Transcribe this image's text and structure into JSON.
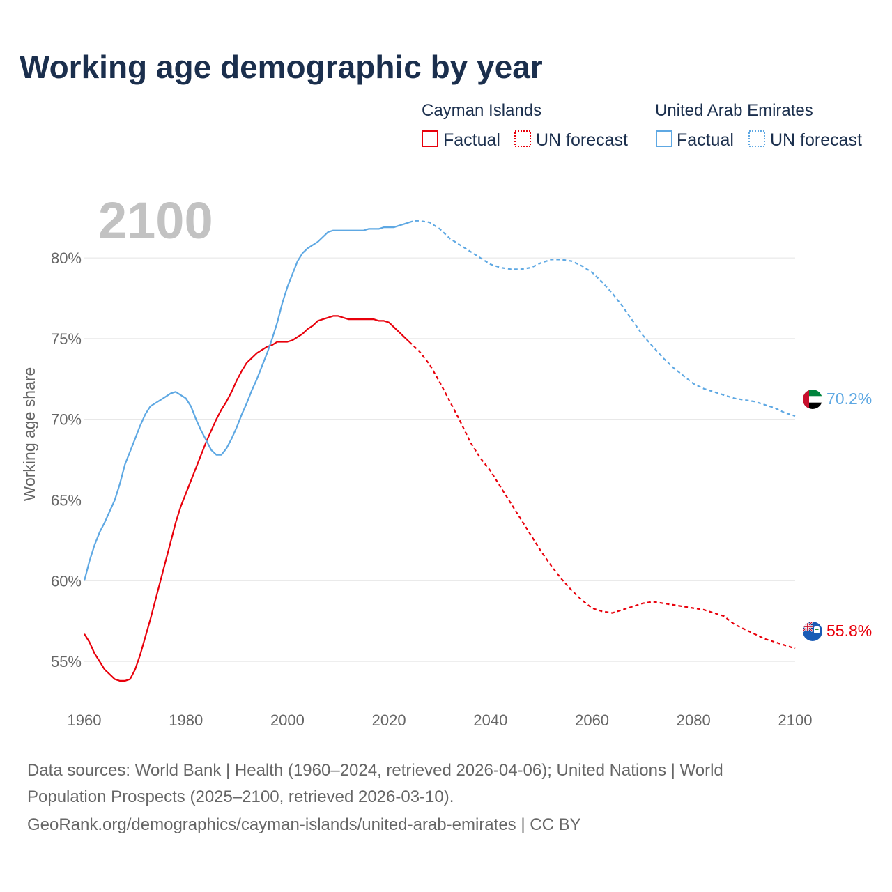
{
  "title": "Working age demographic by year",
  "year_display": "2100",
  "legend": {
    "series": [
      {
        "name": "Cayman Islands",
        "color": "#e8000b",
        "factual_label": "Factual",
        "forecast_label": "UN forecast"
      },
      {
        "name": "United Arab Emirates",
        "color": "#5ea8e3",
        "factual_label": "Factual",
        "forecast_label": "UN forecast"
      }
    ]
  },
  "sources": {
    "line1": "Data sources: World Bank | Health (1960–2024, retrieved 2026-04-06); United Nations | World",
    "line2": "Population Prospects (2025–2100, retrieved 2026-03-10).",
    "line3": "GeoRank.org/demographics/cayman-islands/united-arab-emirates | CC BY"
  },
  "chart_data": {
    "type": "line",
    "title": "Working age demographic by year",
    "xlabel": "",
    "ylabel": "Working age share",
    "xlim": [
      1960,
      2100
    ],
    "ylim": [
      52.5,
      83.5
    ],
    "x_ticks": [
      1960,
      1980,
      2000,
      2020,
      2040,
      2060,
      2080,
      2100
    ],
    "y_ticks": [
      55,
      60,
      65,
      70,
      75,
      80
    ],
    "y_tick_labels": [
      "55%",
      "60%",
      "65%",
      "70%",
      "75%",
      "80%"
    ],
    "forecast_start": 2024,
    "series": [
      {
        "name": "Cayman Islands",
        "color": "#e8000b",
        "end_label": "55.8%",
        "points": [
          [
            1960,
            56.7
          ],
          [
            1961,
            56.2
          ],
          [
            1962,
            55.5
          ],
          [
            1963,
            55.0
          ],
          [
            1964,
            54.5
          ],
          [
            1965,
            54.2
          ],
          [
            1966,
            53.9
          ],
          [
            1967,
            53.8
          ],
          [
            1968,
            53.8
          ],
          [
            1969,
            53.9
          ],
          [
            1970,
            54.5
          ],
          [
            1971,
            55.4
          ],
          [
            1972,
            56.5
          ],
          [
            1973,
            57.6
          ],
          [
            1974,
            58.8
          ],
          [
            1975,
            60.0
          ],
          [
            1976,
            61.2
          ],
          [
            1977,
            62.4
          ],
          [
            1978,
            63.6
          ],
          [
            1979,
            64.6
          ],
          [
            1980,
            65.4
          ],
          [
            1981,
            66.2
          ],
          [
            1982,
            67.0
          ],
          [
            1983,
            67.8
          ],
          [
            1984,
            68.6
          ],
          [
            1985,
            69.3
          ],
          [
            1986,
            70.0
          ],
          [
            1987,
            70.6
          ],
          [
            1988,
            71.1
          ],
          [
            1989,
            71.7
          ],
          [
            1990,
            72.4
          ],
          [
            1991,
            73.0
          ],
          [
            1992,
            73.5
          ],
          [
            1993,
            73.8
          ],
          [
            1994,
            74.1
          ],
          [
            1995,
            74.3
          ],
          [
            1996,
            74.5
          ],
          [
            1997,
            74.6
          ],
          [
            1998,
            74.8
          ],
          [
            1999,
            74.8
          ],
          [
            2000,
            74.8
          ],
          [
            2001,
            74.9
          ],
          [
            2002,
            75.1
          ],
          [
            2003,
            75.3
          ],
          [
            2004,
            75.6
          ],
          [
            2005,
            75.8
          ],
          [
            2006,
            76.1
          ],
          [
            2007,
            76.2
          ],
          [
            2008,
            76.3
          ],
          [
            2009,
            76.4
          ],
          [
            2010,
            76.4
          ],
          [
            2011,
            76.3
          ],
          [
            2012,
            76.2
          ],
          [
            2013,
            76.2
          ],
          [
            2014,
            76.2
          ],
          [
            2015,
            76.2
          ],
          [
            2016,
            76.2
          ],
          [
            2017,
            76.2
          ],
          [
            2018,
            76.1
          ],
          [
            2019,
            76.1
          ],
          [
            2020,
            76.0
          ],
          [
            2021,
            75.7
          ],
          [
            2022,
            75.4
          ],
          [
            2023,
            75.1
          ],
          [
            2024,
            74.8
          ],
          [
            2025,
            74.5
          ],
          [
            2026,
            74.2
          ],
          [
            2028,
            73.4
          ],
          [
            2030,
            72.3
          ],
          [
            2032,
            71.1
          ],
          [
            2034,
            69.9
          ],
          [
            2036,
            68.6
          ],
          [
            2038,
            67.6
          ],
          [
            2040,
            66.8
          ],
          [
            2042,
            65.8
          ],
          [
            2044,
            64.8
          ],
          [
            2046,
            63.8
          ],
          [
            2048,
            62.8
          ],
          [
            2050,
            61.8
          ],
          [
            2052,
            60.9
          ],
          [
            2054,
            60.1
          ],
          [
            2056,
            59.4
          ],
          [
            2058,
            58.8
          ],
          [
            2060,
            58.3
          ],
          [
            2062,
            58.1
          ],
          [
            2064,
            58.0
          ],
          [
            2066,
            58.2
          ],
          [
            2068,
            58.4
          ],
          [
            2070,
            58.6
          ],
          [
            2072,
            58.7
          ],
          [
            2074,
            58.6
          ],
          [
            2076,
            58.5
          ],
          [
            2078,
            58.4
          ],
          [
            2080,
            58.3
          ],
          [
            2082,
            58.2
          ],
          [
            2084,
            58.0
          ],
          [
            2086,
            57.8
          ],
          [
            2088,
            57.3
          ],
          [
            2090,
            57.0
          ],
          [
            2092,
            56.7
          ],
          [
            2094,
            56.4
          ],
          [
            2096,
            56.2
          ],
          [
            2098,
            56.0
          ],
          [
            2100,
            55.8
          ]
        ]
      },
      {
        "name": "United Arab Emirates",
        "color": "#5ea8e3",
        "end_label": "70.2%",
        "points": [
          [
            1960,
            60.0
          ],
          [
            1961,
            61.2
          ],
          [
            1962,
            62.2
          ],
          [
            1963,
            63.0
          ],
          [
            1964,
            63.6
          ],
          [
            1965,
            64.3
          ],
          [
            1966,
            65.0
          ],
          [
            1967,
            66.0
          ],
          [
            1968,
            67.2
          ],
          [
            1969,
            68.0
          ],
          [
            1970,
            68.8
          ],
          [
            1971,
            69.6
          ],
          [
            1972,
            70.3
          ],
          [
            1973,
            70.8
          ],
          [
            1974,
            71.0
          ],
          [
            1975,
            71.2
          ],
          [
            1976,
            71.4
          ],
          [
            1977,
            71.6
          ],
          [
            1978,
            71.7
          ],
          [
            1979,
            71.5
          ],
          [
            1980,
            71.3
          ],
          [
            1981,
            70.8
          ],
          [
            1982,
            70.0
          ],
          [
            1983,
            69.3
          ],
          [
            1984,
            68.7
          ],
          [
            1985,
            68.1
          ],
          [
            1986,
            67.8
          ],
          [
            1987,
            67.8
          ],
          [
            1988,
            68.2
          ],
          [
            1989,
            68.8
          ],
          [
            1990,
            69.5
          ],
          [
            1991,
            70.3
          ],
          [
            1992,
            71.0
          ],
          [
            1993,
            71.8
          ],
          [
            1994,
            72.5
          ],
          [
            1995,
            73.3
          ],
          [
            1996,
            74.1
          ],
          [
            1997,
            75.0
          ],
          [
            1998,
            76.0
          ],
          [
            1999,
            77.2
          ],
          [
            2000,
            78.2
          ],
          [
            2001,
            79.0
          ],
          [
            2002,
            79.8
          ],
          [
            2003,
            80.3
          ],
          [
            2004,
            80.6
          ],
          [
            2005,
            80.8
          ],
          [
            2006,
            81.0
          ],
          [
            2007,
            81.3
          ],
          [
            2008,
            81.6
          ],
          [
            2009,
            81.7
          ],
          [
            2010,
            81.7
          ],
          [
            2011,
            81.7
          ],
          [
            2012,
            81.7
          ],
          [
            2013,
            81.7
          ],
          [
            2014,
            81.7
          ],
          [
            2015,
            81.7
          ],
          [
            2016,
            81.8
          ],
          [
            2017,
            81.8
          ],
          [
            2018,
            81.8
          ],
          [
            2019,
            81.9
          ],
          [
            2020,
            81.9
          ],
          [
            2021,
            81.9
          ],
          [
            2022,
            82.0
          ],
          [
            2023,
            82.1
          ],
          [
            2024,
            82.2
          ],
          [
            2025,
            82.3
          ],
          [
            2026,
            82.3
          ],
          [
            2028,
            82.2
          ],
          [
            2030,
            81.8
          ],
          [
            2032,
            81.2
          ],
          [
            2034,
            80.8
          ],
          [
            2036,
            80.4
          ],
          [
            2038,
            80.0
          ],
          [
            2040,
            79.6
          ],
          [
            2042,
            79.4
          ],
          [
            2044,
            79.3
          ],
          [
            2046,
            79.3
          ],
          [
            2048,
            79.4
          ],
          [
            2050,
            79.7
          ],
          [
            2052,
            79.9
          ],
          [
            2054,
            79.9
          ],
          [
            2056,
            79.8
          ],
          [
            2058,
            79.5
          ],
          [
            2060,
            79.1
          ],
          [
            2062,
            78.5
          ],
          [
            2064,
            77.8
          ],
          [
            2066,
            77.0
          ],
          [
            2068,
            76.1
          ],
          [
            2070,
            75.2
          ],
          [
            2072,
            74.5
          ],
          [
            2074,
            73.8
          ],
          [
            2076,
            73.2
          ],
          [
            2078,
            72.7
          ],
          [
            2080,
            72.2
          ],
          [
            2082,
            71.9
          ],
          [
            2084,
            71.7
          ],
          [
            2086,
            71.5
          ],
          [
            2088,
            71.3
          ],
          [
            2090,
            71.2
          ],
          [
            2092,
            71.1
          ],
          [
            2094,
            70.9
          ],
          [
            2096,
            70.7
          ],
          [
            2098,
            70.4
          ],
          [
            2100,
            70.2
          ]
        ]
      }
    ]
  }
}
